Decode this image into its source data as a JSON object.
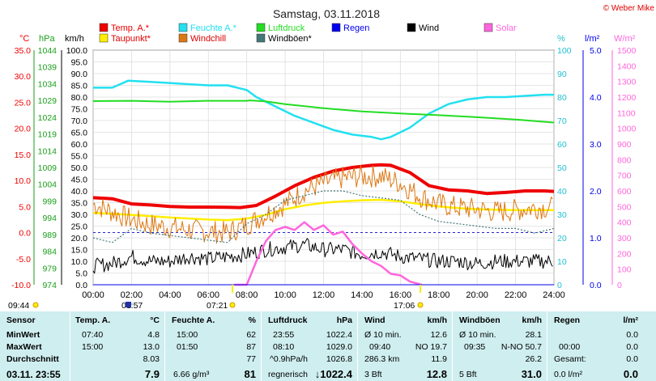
{
  "title": "Samstag, 03.11.2018",
  "copyright": "© Weber Mike",
  "colors": {
    "temp": "#ee0000",
    "feuchte": "#22e0f0",
    "luftdruck": "#22dd22",
    "regen": "#0000ee",
    "wind": "#000000",
    "solar": "#ff66dd",
    "taupunkt": "#ffee00",
    "windchill": "#dd7711",
    "windboeen": "#447777"
  },
  "legend": [
    {
      "label": "Temp. A.*",
      "key": "temp"
    },
    {
      "label": "Feuchte A.*",
      "key": "feuchte"
    },
    {
      "label": "Luftdruck",
      "key": "luftdruck"
    },
    {
      "label": "Regen",
      "key": "regen"
    },
    {
      "label": "Wind",
      "key": "wind"
    },
    {
      "label": "Solar",
      "key": "solar"
    },
    {
      "label": "Taupunkt*",
      "key": "taupunkt"
    },
    {
      "label": "Windchill",
      "key": "windchill"
    },
    {
      "label": "Windböen*",
      "key": "windboeen"
    }
  ],
  "axis_units": {
    "temp": "°C",
    "pressure": "hPa",
    "wind": "km/h",
    "humidity": "%",
    "rain": "l/m²",
    "solar": "W/m²"
  },
  "sun_events": [
    "09:44",
    "01:57",
    "07:21",
    "17:06"
  ],
  "chart_data": {
    "type": "line",
    "x_unit": "hour of day",
    "x_ticks": [
      "00:00",
      "02:00",
      "04:00",
      "06:00",
      "08:00",
      "10:00",
      "12:00",
      "14:00",
      "16:00",
      "18:00",
      "20:00",
      "22:00",
      "24:00"
    ],
    "x_range": [
      0,
      24
    ],
    "axes": {
      "temp": {
        "ylim": [
          -10,
          35
        ],
        "ticks": [
          "35.0",
          "30.0",
          "25.0",
          "20.0",
          "15.0",
          "10.0",
          "5.0",
          "0.0",
          "-5.0",
          "-10.0"
        ]
      },
      "pressure": {
        "ylim": [
          974,
          1044
        ],
        "ticks": [
          "1044",
          "1039",
          "1034",
          "1029",
          "1024",
          "1019",
          "1014",
          "1009",
          "1004",
          "999",
          "994",
          "989",
          "984",
          "979",
          "974"
        ]
      },
      "wind": {
        "ylim": [
          0,
          100
        ],
        "ticks": [
          "100.0",
          "95.0",
          "90.0",
          "85.0",
          "80.0",
          "75.0",
          "70.0",
          "65.0",
          "60.0",
          "55.0",
          "50.0",
          "45.0",
          "40.0",
          "35.0",
          "30.0",
          "25.0",
          "20.0",
          "15.0",
          "10.0",
          "5.0",
          "0.0"
        ]
      },
      "humidity": {
        "ylim": [
          0,
          100
        ],
        "ticks": [
          "100",
          "90",
          "80",
          "70",
          "60",
          "50",
          "40",
          "30",
          "20",
          "10",
          "0"
        ]
      },
      "rain": {
        "ylim": [
          0,
          5
        ],
        "ticks": [
          "5.0",
          "4.0",
          "3.0",
          "2.0",
          "1.0",
          "0.0"
        ]
      },
      "solar": {
        "ylim": [
          0,
          1500
        ],
        "ticks": [
          "1500",
          "1400",
          "1300",
          "1200",
          "1100",
          "1000",
          "900",
          "800",
          "700",
          "600",
          "500",
          "400",
          "300",
          "200",
          "100",
          "0"
        ]
      }
    },
    "series": [
      {
        "name": "Temp. A.*",
        "axis": "temp",
        "color_key": "temp",
        "x": [
          0,
          1,
          2,
          3,
          4,
          5,
          6,
          7,
          7.67,
          8.5,
          9.5,
          10.5,
          11.5,
          12.5,
          13.5,
          14.5,
          15,
          15.5,
          16.5,
          17.5,
          18.5,
          19.5,
          20.5,
          21.5,
          22.5,
          23.5,
          24
        ],
        "y": [
          6.7,
          6.5,
          5.5,
          5.3,
          5.0,
          4.9,
          4.9,
          4.85,
          4.8,
          5.2,
          7.0,
          9.0,
          10.6,
          11.8,
          12.5,
          12.9,
          13.0,
          12.9,
          11.5,
          9.0,
          8.2,
          8.0,
          7.5,
          7.7,
          8.0,
          8.0,
          7.9
        ]
      },
      {
        "name": "Feuchte A.*",
        "axis": "humidity",
        "color_key": "feuchte",
        "x": [
          0,
          1,
          1.83,
          3,
          4,
          5,
          6,
          7,
          8,
          8.5,
          9.5,
          10.5,
          11.5,
          12.5,
          13.5,
          14.5,
          15,
          15.5,
          16.5,
          17.5,
          18.5,
          19.5,
          20.5,
          21.5,
          22.5,
          23.5,
          24
        ],
        "y": [
          84,
          84,
          87,
          86.5,
          86,
          85.5,
          85,
          85,
          83,
          80,
          76,
          72,
          69,
          66,
          64,
          63,
          62,
          63,
          67,
          73,
          77,
          79,
          80,
          80,
          80.5,
          81,
          81
        ]
      },
      {
        "name": "Luftdruck",
        "axis": "pressure",
        "color_key": "luftdruck",
        "x": [
          0,
          2,
          4,
          6,
          8,
          8.17,
          9,
          10,
          12,
          14,
          16,
          18,
          20,
          22,
          24
        ],
        "y": [
          1028.8,
          1028.9,
          1028.6,
          1028.9,
          1028.9,
          1029.0,
          1028.7,
          1027.9,
          1026.7,
          1025.7,
          1025.1,
          1024.6,
          1024.0,
          1023.3,
          1022.4
        ]
      },
      {
        "name": "Taupunkt*",
        "axis": "temp",
        "color_key": "taupunkt",
        "x": [
          0,
          2,
          4,
          6,
          7,
          8,
          9,
          10,
          11,
          12,
          13,
          14,
          15,
          16,
          17,
          18,
          19,
          20,
          21,
          22,
          23,
          24
        ],
        "y": [
          3.8,
          3.4,
          2.9,
          2.5,
          2.4,
          2.7,
          3.4,
          4.5,
          5.2,
          5.7,
          6.0,
          6.2,
          6.3,
          6.0,
          5.5,
          5.0,
          4.7,
          4.5,
          4.4,
          4.3,
          4.3,
          4.3
        ]
      },
      {
        "name": "Windchill",
        "axis": "temp",
        "color_key": "windchill",
        "x": [
          0,
          1,
          2,
          3,
          4,
          5,
          6,
          7,
          8,
          9,
          10,
          11,
          12,
          13,
          14,
          15,
          16,
          17,
          18,
          19,
          20,
          21,
          22,
          23,
          24
        ],
        "y": [
          5.5,
          4.0,
          2.5,
          1.5,
          1.0,
          0.5,
          0.2,
          0.0,
          1.5,
          3.5,
          5.5,
          8.0,
          9.5,
          10.5,
          10.8,
          10.8,
          9.5,
          7.0,
          5.5,
          4.8,
          4.5,
          4.0,
          4.3,
          4.8,
          4.8
        ]
      },
      {
        "name": "Windböen*",
        "axis": "wind",
        "color_key": "windboeen",
        "x": [
          0,
          1,
          2,
          3,
          4,
          5,
          6,
          7,
          8,
          9,
          10,
          11,
          12,
          13,
          14,
          15,
          16,
          17,
          18,
          19,
          20,
          21,
          22,
          23,
          24
        ],
        "y": [
          20,
          18,
          24,
          22,
          21,
          20,
          19,
          18,
          26,
          30,
          36,
          38,
          40,
          40,
          38,
          37,
          36,
          30,
          27,
          26,
          25,
          24,
          24,
          22,
          24
        ]
      },
      {
        "name": "Wind",
        "axis": "wind",
        "color_key": "wind",
        "x": [
          0,
          1,
          2,
          3,
          4,
          5,
          6,
          7,
          8,
          9,
          10,
          11,
          12,
          13,
          14,
          15,
          16,
          17,
          18,
          19,
          20,
          21,
          22,
          23,
          24
        ],
        "y": [
          8,
          9,
          12,
          10,
          10,
          12,
          11,
          12,
          13,
          15,
          16,
          17,
          15,
          15,
          13,
          14,
          12,
          11,
          10,
          10,
          9,
          10,
          10,
          10,
          10
        ]
      },
      {
        "name": "Solar",
        "axis": "solar",
        "color_key": "solar",
        "x": [
          7.35,
          8.0,
          8.5,
          9.0,
          9.5,
          10.0,
          10.5,
          11.0,
          11.5,
          12.0,
          12.5,
          13.0,
          13.5,
          14.0,
          14.5,
          15.0,
          15.5,
          16.0,
          16.5,
          17.1
        ],
        "y": [
          0,
          0,
          150,
          280,
          350,
          370,
          350,
          400,
          350,
          380,
          320,
          340,
          260,
          200,
          150,
          120,
          70,
          60,
          20,
          0
        ]
      },
      {
        "name": "Regen",
        "axis": "rain",
        "color_key": "regen",
        "x": [
          0,
          24
        ],
        "y": [
          0,
          0
        ]
      }
    ],
    "reference_line": {
      "axis": "temp",
      "value": 0
    }
  },
  "stats": {
    "sensor": {
      "header": "Sensor",
      "rows": [
        "MinWert",
        "MaxWert",
        "Durchschnitt"
      ],
      "footer": "03.11. 23:55"
    },
    "temp": {
      "header": "Temp. A.",
      "unit": "°C",
      "rows": [
        [
          "07:40",
          "4.8"
        ],
        [
          "15:00",
          "13.0"
        ],
        [
          "",
          "8.03"
        ]
      ],
      "current": "7.9"
    },
    "feuchte": {
      "header": "Feuchte A.",
      "unit": "%",
      "rows": [
        [
          "15:00",
          "62"
        ],
        [
          "01:50",
          "87"
        ],
        [
          "",
          "77"
        ]
      ],
      "footer_left": "6.66 g/m³",
      "current": "81"
    },
    "luftdruck": {
      "header": "Luftdruck",
      "unit": "hPa",
      "rows": [
        [
          "23:55",
          "1022.4"
        ],
        [
          "08:10",
          "1029.0"
        ],
        [
          "^0.9hPa/h",
          "1026.8"
        ]
      ],
      "footer_left": "regnerisch",
      "current": "↓1022.4"
    },
    "wind": {
      "header": "Wind",
      "unit": "km/h",
      "rows": [
        [
          "Ø 10 min.",
          "",
          "12.6"
        ],
        [
          "09:40",
          "NO 19.7",
          ""
        ],
        [
          "286.3 km",
          "",
          "11.9"
        ]
      ],
      "footer_left": "3 Bft",
      "current": "12.8"
    },
    "windboeen": {
      "header": "Windböen",
      "unit": "km/h",
      "rows": [
        [
          "Ø 10 min.",
          "",
          "28.1"
        ],
        [
          "09:35",
          "N-NO 50.7",
          ""
        ],
        [
          "",
          "",
          "26.2"
        ]
      ],
      "footer_left": "5 Bft",
      "current": "31.0"
    },
    "regen": {
      "header": "Regen",
      "unit": "l/m²",
      "rows": [
        [
          "",
          "0.0"
        ],
        [
          "00:00",
          "0.0"
        ],
        [
          "Gesamt:",
          "0.0"
        ]
      ],
      "footer_left": "0.0 l/m²",
      "current": "0.0"
    }
  }
}
